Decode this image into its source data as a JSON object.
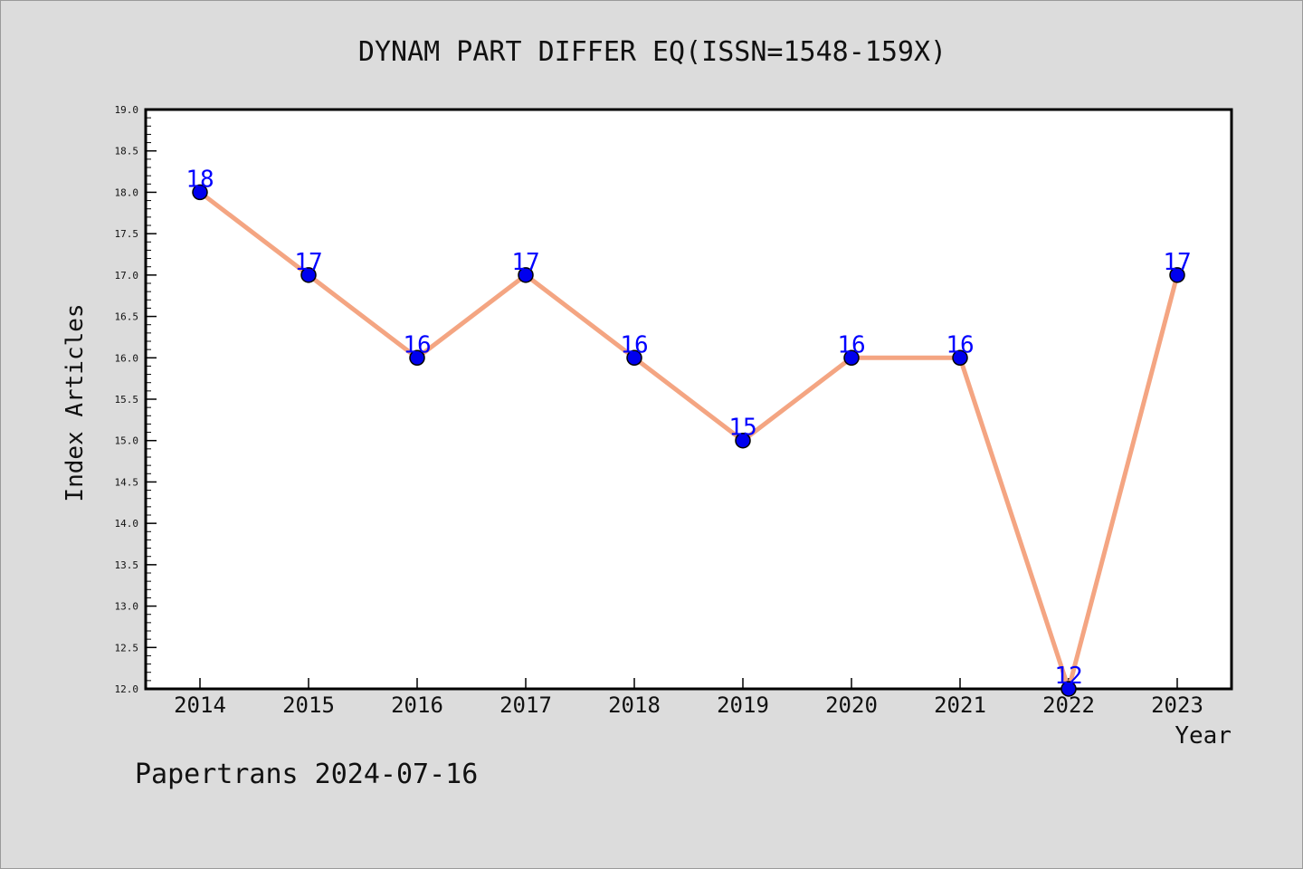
{
  "chart_data": {
    "type": "line",
    "title": "DYNAM PART DIFFER EQ(ISSN=1548-159X)",
    "xlabel": "Year",
    "ylabel": "Index Articles",
    "categories": [
      "2014",
      "2015",
      "2016",
      "2017",
      "2018",
      "2019",
      "2020",
      "2021",
      "2022",
      "2023"
    ],
    "series": [
      {
        "values": [
          18,
          17,
          16,
          17,
          16,
          15,
          16,
          16,
          12,
          17
        ]
      }
    ],
    "data_labels": [
      "18",
      "17",
      "16",
      "17",
      "16",
      "15",
      "16",
      "16",
      "12",
      "17"
    ],
    "ylim": [
      12.0,
      19.0
    ],
    "y_ticks": [
      "12.0",
      "12.5",
      "13.0",
      "13.5",
      "14.0",
      "14.5",
      "15.0",
      "15.5",
      "16.0",
      "16.5",
      "17.0",
      "17.5",
      "18.0",
      "18.5",
      "19.0"
    ],
    "grid": false,
    "colors": {
      "line": "#f4a582",
      "marker": "#0000ee",
      "label": "#0000ff",
      "background": "#dcdcdc",
      "plot_background": "#ffffff"
    }
  },
  "footer": {
    "text": "Papertrans 2024-07-16"
  }
}
